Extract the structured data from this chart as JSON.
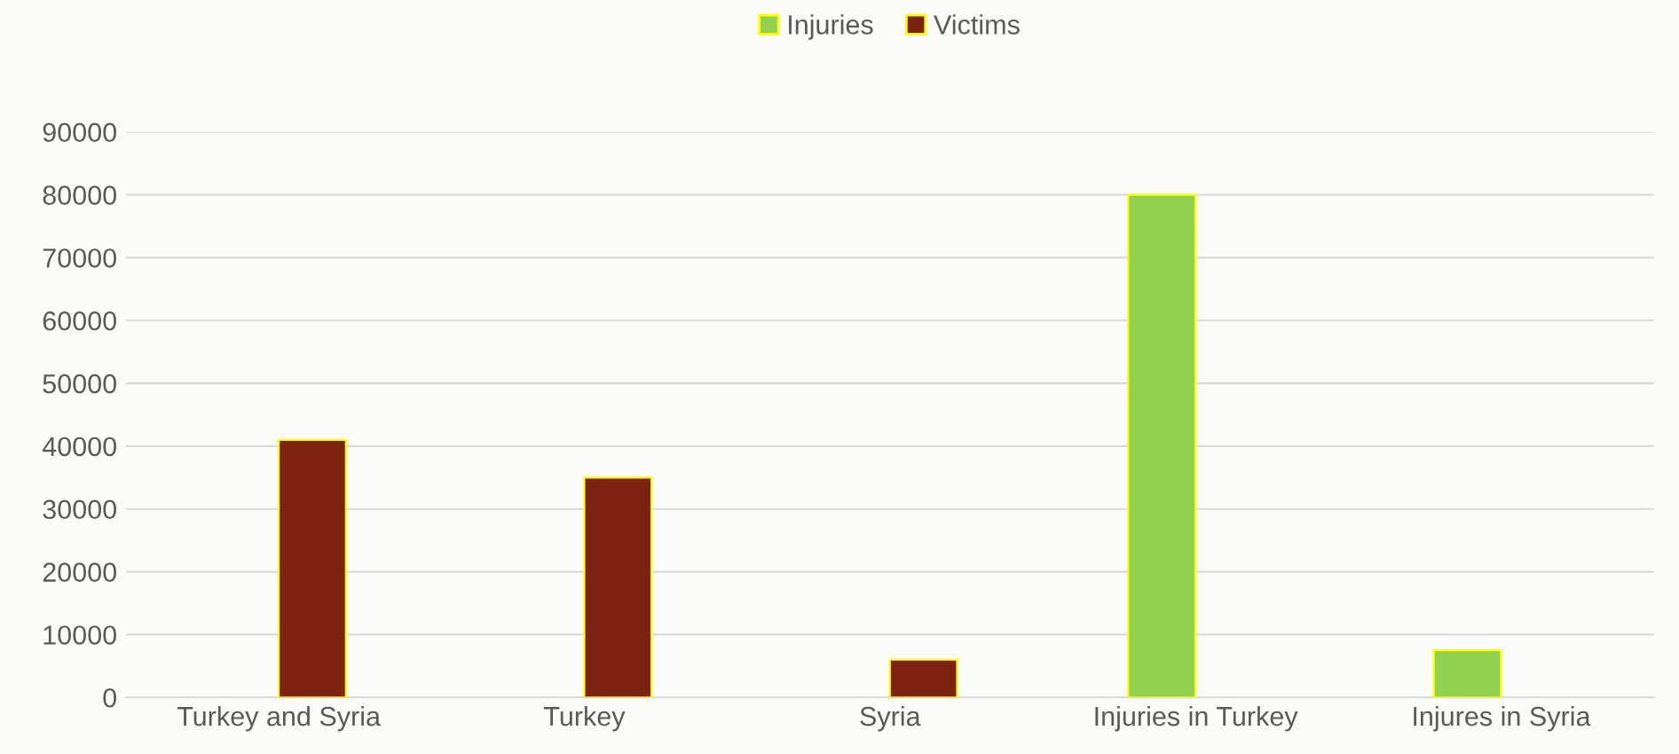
{
  "chart_data": {
    "type": "bar",
    "categories": [
      "Turkey and Syria",
      "Turkey",
      "Syria",
      "Injuries in Turkey",
      "Injures in Syria"
    ],
    "series": [
      {
        "name": "Injuries",
        "color": "#92d050",
        "values": [
          null,
          null,
          null,
          80000,
          7500
        ]
      },
      {
        "name": "Victims",
        "color": "#7b2210",
        "values": [
          41000,
          35000,
          6000,
          null,
          null
        ]
      }
    ],
    "ylim": [
      0,
      90000
    ],
    "yticks": [
      0,
      10000,
      20000,
      30000,
      40000,
      50000,
      60000,
      70000,
      80000,
      90000
    ],
    "grid": "y",
    "legend": "top"
  }
}
